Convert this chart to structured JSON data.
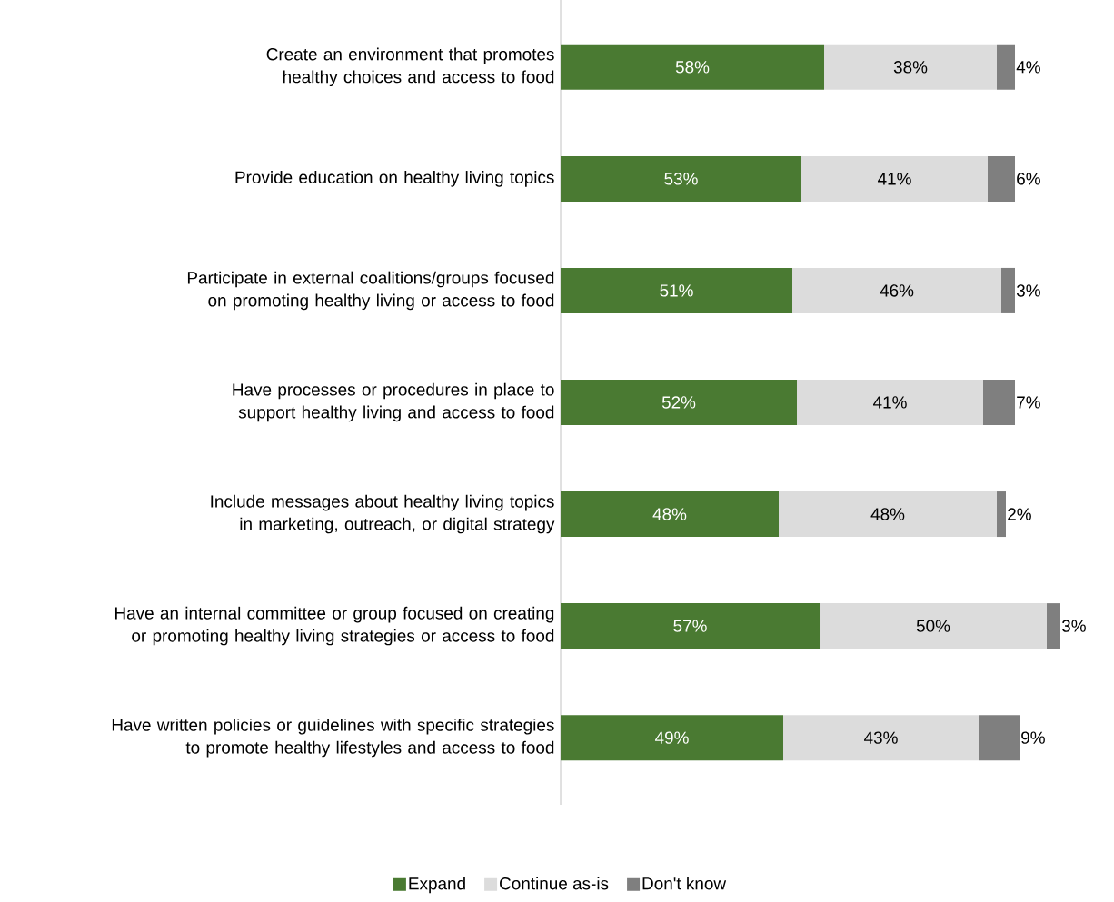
{
  "chart_data": {
    "type": "bar",
    "orientation": "horizontal",
    "stacked": true,
    "legend": "bottom",
    "categories": [
      "Create an environment that promotes healthy choices and access to food",
      "Provide education on healthy living topics",
      "Participate in external coalitions/groups focused on promoting healthy living or access to food",
      "Have processes or procedures in place to support healthy living and access to food",
      "Include messages about healthy living topics in marketing, outreach, or digital strategy",
      "Have an internal committee or group focused on creating or promoting healthy living strategies or access to food",
      "Have written policies or guidelines with specific strategies to promote healthy lifestyles and access to food"
    ],
    "series": [
      {
        "name": "Expand",
        "color": "#4a7a32",
        "values": [
          58,
          53,
          51,
          52,
          48,
          57,
          49
        ],
        "value_labels": [
          "58%",
          "53%",
          "51%",
          "52%",
          "48%",
          "57%",
          "49%"
        ]
      },
      {
        "name": "Continue as-is",
        "color": "#dcdcdc",
        "values": [
          38,
          41,
          46,
          41,
          48,
          50,
          43
        ],
        "value_labels": [
          "38%",
          "41%",
          "46%",
          "41%",
          "48%",
          "50%",
          "43%"
        ]
      },
      {
        "name": "Don't know",
        "color": "#7f7f7f",
        "values": [
          4,
          6,
          3,
          7,
          2,
          3,
          9
        ],
        "value_labels": [
          "4%",
          "6%",
          "3%",
          "7%",
          "2%",
          "3%",
          "9%"
        ]
      }
    ]
  }
}
